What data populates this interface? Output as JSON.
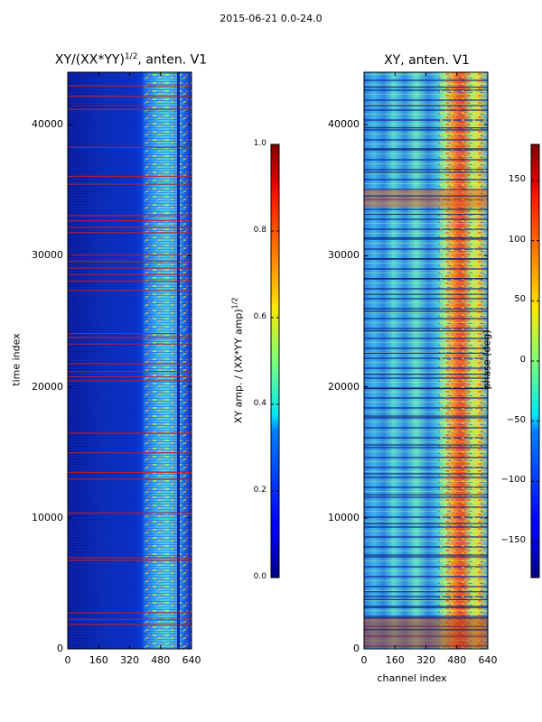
{
  "suptitle": "2015-06-21 0.0-24.0",
  "chart_data": [
    {
      "type": "heatmap",
      "title_prefix": "XY/(XX*YY)",
      "title_exponent": "1/2",
      "title_suffix": ", anten. V1",
      "xlabel": "",
      "ylabel": "time index",
      "xlim": [
        0,
        640
      ],
      "ylim": [
        0,
        44000
      ],
      "xticks": [
        0,
        160,
        320,
        480,
        640
      ],
      "yticks": [
        0,
        10000,
        20000,
        30000,
        40000
      ],
      "colorbar": {
        "label_prefix": "XY amp. / (XX*YY amp)",
        "label_exponent": "1/2",
        "range": [
          0.0,
          1.0
        ],
        "ticks": [
          "0.0",
          "0.2",
          "0.4",
          "0.6",
          "0.8",
          "1.0"
        ],
        "tick_values": [
          0.0,
          0.2,
          0.4,
          0.6,
          0.8,
          1.0
        ],
        "colormap": "jet"
      },
      "flagged_time_rows": [
        1900,
        2300,
        2800,
        6800,
        7000,
        10400,
        13000,
        13500,
        15000,
        16500,
        20500,
        20800,
        21200,
        21800,
        23300,
        23800,
        24100,
        27400,
        28100,
        28600,
        29100,
        29600,
        30100,
        31800,
        32200,
        32700,
        33100,
        35500,
        36100,
        38300,
        41200,
        42200,
        43000
      ]
    },
    {
      "type": "heatmap",
      "title": "XY, anten. V1",
      "xlabel": "channel index",
      "ylabel": "",
      "xlim": [
        0,
        640
      ],
      "ylim": [
        0,
        44000
      ],
      "xticks": [
        0,
        160,
        320,
        480,
        640
      ],
      "yticks": [
        0,
        10000,
        20000,
        30000,
        40000
      ],
      "colorbar": {
        "label": "phase (deg)",
        "range": [
          -180,
          180
        ],
        "ticks": [
          "150",
          "100",
          "50",
          "0",
          "−50",
          "−100",
          "−150"
        ],
        "tick_values": [
          150,
          100,
          50,
          0,
          -50,
          -100,
          -150
        ],
        "colormap": "jet"
      },
      "flagged_time_rows": [
        1500,
        2400,
        3200,
        3800,
        4400,
        7200,
        9600,
        11800,
        13400,
        15600,
        17800,
        19900,
        21000,
        22600,
        24300,
        25800,
        27100,
        28300,
        29800,
        31400,
        33200,
        34600,
        36400,
        38200,
        39800,
        41500,
        42900
      ]
    }
  ]
}
